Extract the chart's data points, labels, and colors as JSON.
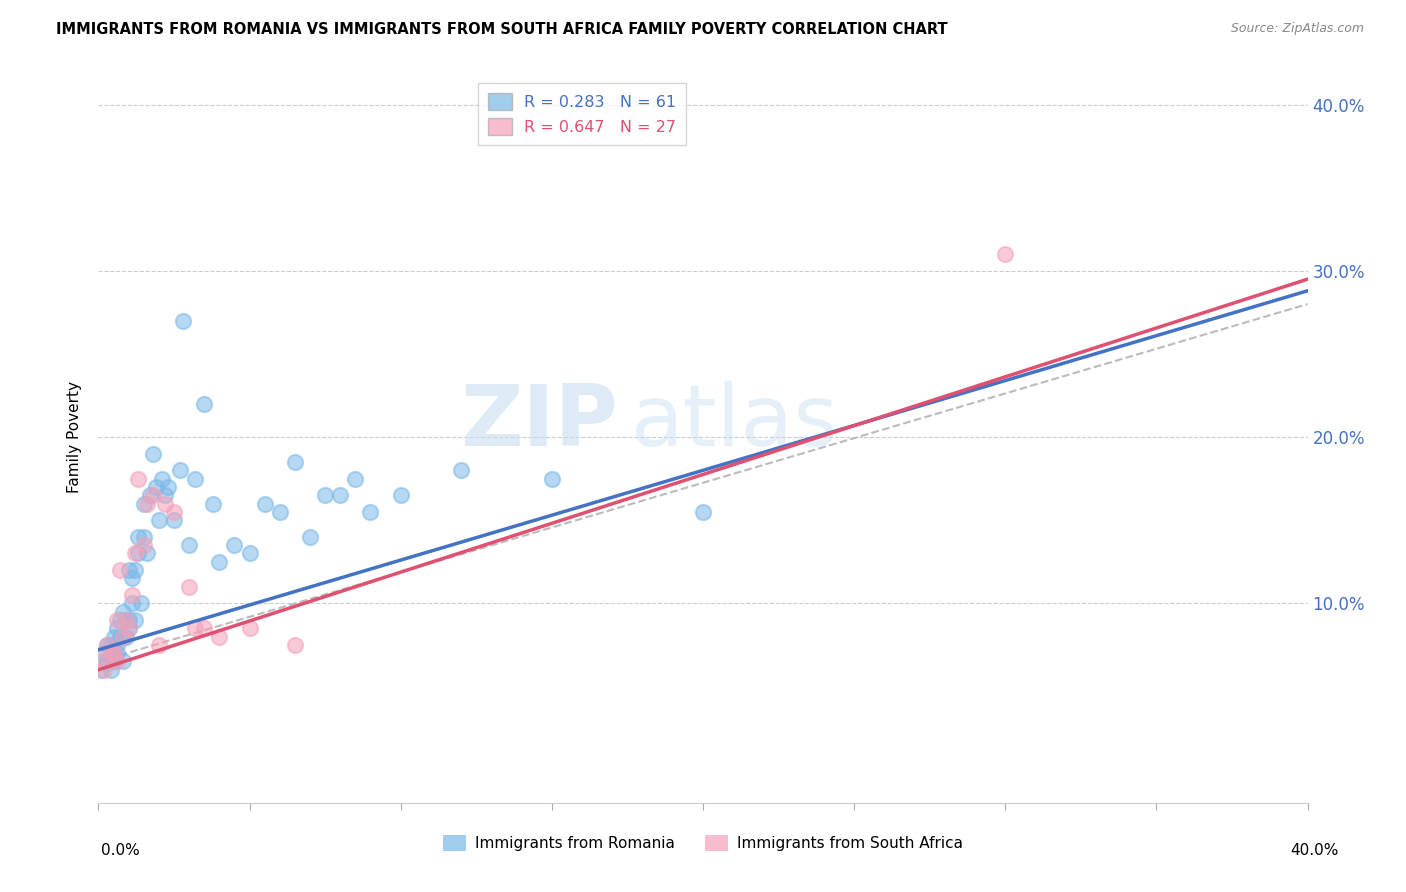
{
  "title": "IMMIGRANTS FROM ROMANIA VS IMMIGRANTS FROM SOUTH AFRICA FAMILY POVERTY CORRELATION CHART",
  "source": "Source: ZipAtlas.com",
  "ylabel": "Family Poverty",
  "ytick_labels": [
    "10.0%",
    "20.0%",
    "30.0%",
    "40.0%"
  ],
  "legend_romania": "R = 0.283   N = 61",
  "legend_sa": "R = 0.647   N = 27",
  "romania_color": "#7ab8e8",
  "sa_color": "#f4a0b8",
  "romania_line_color": "#4472c4",
  "sa_line_color": "#e05070",
  "xmin": 0.0,
  "xmax": 0.4,
  "ymin": -0.02,
  "ymax": 0.42,
  "romania_scatter_x": [
    0.001,
    0.002,
    0.003,
    0.003,
    0.004,
    0.004,
    0.005,
    0.005,
    0.005,
    0.006,
    0.006,
    0.006,
    0.007,
    0.007,
    0.008,
    0.008,
    0.008,
    0.009,
    0.009,
    0.01,
    0.01,
    0.01,
    0.011,
    0.011,
    0.012,
    0.012,
    0.013,
    0.013,
    0.014,
    0.015,
    0.015,
    0.016,
    0.017,
    0.018,
    0.019,
    0.02,
    0.021,
    0.022,
    0.023,
    0.025,
    0.027,
    0.028,
    0.03,
    0.032,
    0.035,
    0.038,
    0.04,
    0.045,
    0.05,
    0.055,
    0.06,
    0.065,
    0.07,
    0.075,
    0.08,
    0.085,
    0.09,
    0.1,
    0.12,
    0.15,
    0.2
  ],
  "romania_scatter_y": [
    0.06,
    0.07,
    0.065,
    0.075,
    0.06,
    0.075,
    0.065,
    0.07,
    0.08,
    0.07,
    0.075,
    0.085,
    0.08,
    0.09,
    0.065,
    0.08,
    0.095,
    0.08,
    0.09,
    0.085,
    0.09,
    0.12,
    0.1,
    0.115,
    0.09,
    0.12,
    0.13,
    0.14,
    0.1,
    0.14,
    0.16,
    0.13,
    0.165,
    0.19,
    0.17,
    0.15,
    0.175,
    0.165,
    0.17,
    0.15,
    0.18,
    0.27,
    0.135,
    0.175,
    0.22,
    0.16,
    0.125,
    0.135,
    0.13,
    0.16,
    0.155,
    0.185,
    0.14,
    0.165,
    0.165,
    0.175,
    0.155,
    0.165,
    0.18,
    0.175,
    0.155
  ],
  "sa_scatter_x": [
    0.001,
    0.002,
    0.003,
    0.004,
    0.005,
    0.006,
    0.006,
    0.007,
    0.008,
    0.009,
    0.01,
    0.011,
    0.012,
    0.013,
    0.015,
    0.016,
    0.018,
    0.02,
    0.022,
    0.025,
    0.03,
    0.032,
    0.035,
    0.04,
    0.05,
    0.065,
    0.3
  ],
  "sa_scatter_y": [
    0.065,
    0.06,
    0.075,
    0.07,
    0.07,
    0.065,
    0.09,
    0.12,
    0.08,
    0.09,
    0.085,
    0.105,
    0.13,
    0.175,
    0.135,
    0.16,
    0.165,
    0.075,
    0.16,
    0.155,
    0.11,
    0.085,
    0.085,
    0.08,
    0.085,
    0.075,
    0.31
  ],
  "romania_line_x": [
    0.0,
    0.4
  ],
  "romania_line_y": [
    0.072,
    0.288
  ],
  "sa_line_x": [
    0.0,
    0.4
  ],
  "sa_line_y": [
    0.06,
    0.295
  ],
  "gray_line_x": [
    0.0,
    0.4
  ],
  "gray_line_y": [
    0.065,
    0.28
  ],
  "watermark_zip": "ZIP",
  "watermark_atlas": "atlas",
  "legend_label_romania": "Immigrants from Romania",
  "legend_label_sa": "Immigrants from South Africa"
}
